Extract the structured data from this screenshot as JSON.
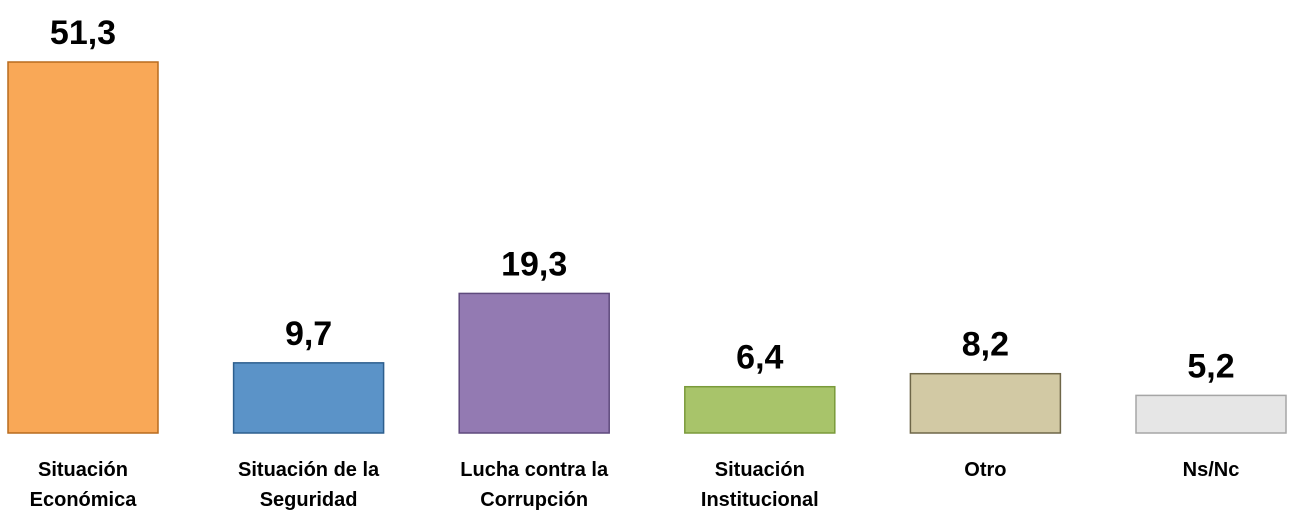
{
  "chart_data": {
    "type": "bar",
    "categories": [
      "Situación Económica",
      "Situación de la Seguridad",
      "Lucha contra la Corrupción",
      "Situación Institucional",
      "Otro",
      "Ns/Nc"
    ],
    "values": [
      51.3,
      9.7,
      19.3,
      6.4,
      8.2,
      5.2
    ],
    "value_labels": [
      "51,3",
      "9,7",
      "19,3",
      "6,4",
      "8,2",
      "5,2"
    ],
    "colors": [
      "#f9a857",
      "#5b93c8",
      "#937ab2",
      "#a8c46a",
      "#d2c9a4",
      "#e6e6e6"
    ],
    "border_colors": [
      "#b86b1f",
      "#2d5f8e",
      "#5f4a7d",
      "#7a9a3a",
      "#6e6648",
      "#a6a6a6"
    ]
  }
}
